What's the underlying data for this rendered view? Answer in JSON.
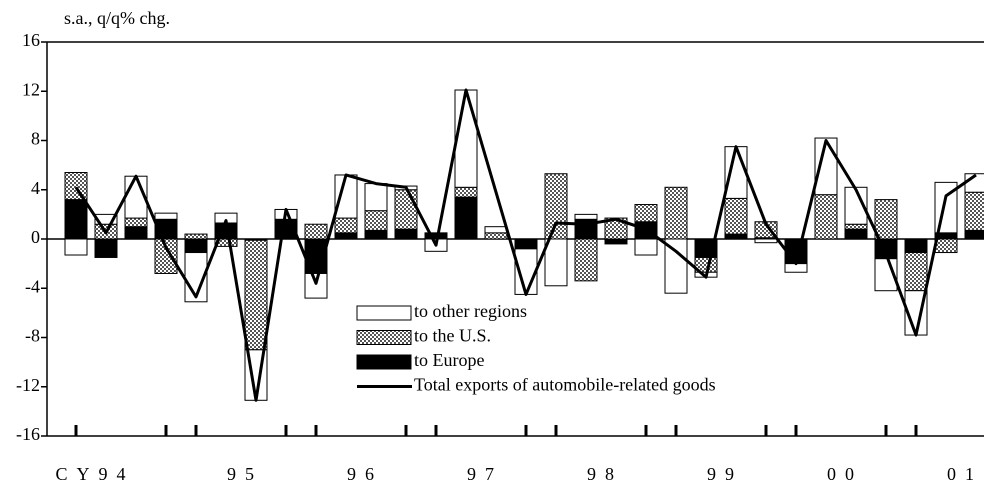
{
  "chart_data": {
    "type": "bar",
    "stacked": true,
    "y_axis_title": "s.a., q/q% chg.",
    "categories": [
      null,
      "CY94",
      null,
      null,
      null,
      "95",
      null,
      null,
      null,
      "96",
      null,
      null,
      null,
      "97",
      null,
      null,
      null,
      "98",
      null,
      null,
      null,
      "99",
      null,
      null,
      null,
      "00",
      null,
      null,
      null,
      "01",
      null
    ],
    "series": [
      {
        "name": "to other regions",
        "color": "#ffffff",
        "values": [
          -1.3,
          0.8,
          3.4,
          0.5,
          -4.0,
          0.8,
          -4.1,
          0.8,
          -2.0,
          3.5,
          2.2,
          0.3,
          -1.0,
          7.9,
          0.5,
          -3.7,
          -3.8,
          0.4,
          0,
          -1.3,
          -4.4,
          -0.4,
          4.2,
          -0.3,
          -0.7,
          4.6,
          3.0,
          -2.6,
          -3.6,
          4.1,
          1.5
        ]
      },
      {
        "name": "to the U.S.",
        "color": "#a8a8a8",
        "values": [
          2.2,
          1.2,
          0.7,
          -2.8,
          0.4,
          -0.6,
          -8.9,
          0,
          1.2,
          1.2,
          1.6,
          3.2,
          0,
          0.8,
          0.5,
          0,
          5.3,
          -3.4,
          1.7,
          1.4,
          4.2,
          -1.2,
          2.9,
          1.3,
          0,
          3.6,
          0.4,
          3.2,
          -3.1,
          -1.1,
          3.1
        ]
      },
      {
        "name": "to Europe",
        "color": "#000000",
        "values": [
          3.2,
          -1.5,
          1.0,
          1.6,
          -1.1,
          1.3,
          -0.1,
          1.6,
          -2.8,
          0.5,
          0.7,
          0.8,
          0.5,
          3.4,
          0,
          -0.8,
          0,
          1.6,
          -0.4,
          1.4,
          0,
          -1.5,
          0.4,
          0.1,
          -2.0,
          0,
          0.8,
          -1.6,
          -1.1,
          0.5,
          0.7
        ]
      },
      {
        "name": "Total exports of automobile-related goods",
        "type": "line",
        "color": "#000000",
        "values": [
          4.2,
          0.5,
          5.1,
          -0.7,
          -4.7,
          1.5,
          -13.1,
          2.4,
          -3.6,
          5.2,
          4.5,
          4.2,
          -0.5,
          12.1,
          3.8,
          -4.5,
          1.3,
          1.2,
          1.6,
          0.8,
          -1.0,
          -3.1,
          7.5,
          1.2,
          -2.0,
          8.0,
          4.0,
          -1.2,
          -7.8,
          3.5,
          5.2
        ]
      }
    ],
    "ylim": [
      -16,
      16
    ],
    "yticks": [
      -16,
      -12,
      -8,
      -4,
      0,
      4,
      8,
      12,
      16
    ]
  }
}
